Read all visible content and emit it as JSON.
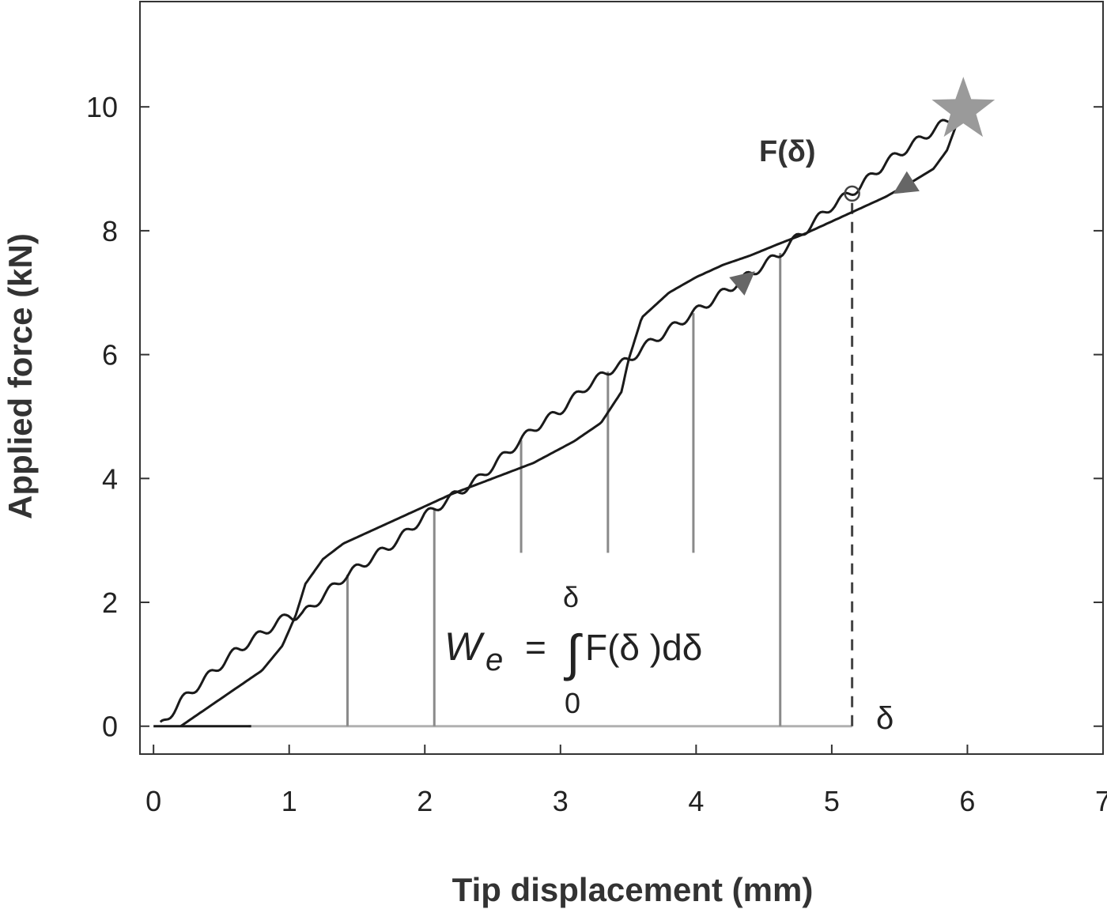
{
  "chart_data": {
    "type": "line",
    "title": "",
    "xlabel": "Tip displacement (mm)",
    "ylabel": "Applied force (kN)",
    "xlim": [
      -0.1,
      7
    ],
    "ylim": [
      -0.45,
      11.7
    ],
    "xticks": [
      0,
      1,
      2,
      3,
      4,
      5,
      6,
      7
    ],
    "xtick_labels": [
      "0",
      "1",
      "2",
      "3",
      "4",
      "5",
      "6",
      "7"
    ],
    "yticks": [
      0,
      2,
      4,
      6,
      8,
      10
    ],
    "ytick_labels": [
      "0",
      "2",
      "4",
      "6",
      "8",
      "10"
    ],
    "grid": false,
    "colors": {
      "curve": "#1a1a1a",
      "area_lines": "#8a8a8a",
      "baseline": "#b0b0b0",
      "arrow": "#666666",
      "star": "#9a9a9a"
    },
    "series": [
      {
        "style": "smooth-wavy",
        "x": [
          0.05,
          0.2,
          0.4,
          0.6,
          0.8,
          1.0,
          1.05,
          1.1,
          1.2,
          1.4,
          1.6,
          1.8,
          2.0,
          2.2,
          2.4,
          2.6,
          2.8,
          3.0,
          3.2,
          3.4,
          3.5,
          3.6,
          3.8,
          4.0,
          4.2,
          4.4,
          4.6,
          4.8,
          5.0,
          5.2,
          5.4,
          5.6,
          5.8,
          5.95
        ],
        "y": [
          0.0,
          0.4,
          0.8,
          1.2,
          1.5,
          1.8,
          1.78,
          1.8,
          2.0,
          2.4,
          2.7,
          3.0,
          3.4,
          3.7,
          4.0,
          4.4,
          4.8,
          5.1,
          5.5,
          5.8,
          5.9,
          6.1,
          6.4,
          6.7,
          7.0,
          7.3,
          7.6,
          8.0,
          8.4,
          8.7,
          9.1,
          9.4,
          9.7,
          9.9
        ]
      },
      {
        "style": "s-shaped",
        "x": [
          0.2,
          0.4,
          0.6,
          0.8,
          0.95,
          1.05,
          1.12,
          1.25,
          1.4,
          1.6,
          1.8,
          2.0,
          2.2,
          2.5,
          2.8,
          3.1,
          3.3,
          3.45,
          3.5,
          3.6,
          3.8,
          4.0,
          4.2,
          4.4,
          4.6,
          4.8,
          5.0,
          5.2,
          5.4,
          5.6,
          5.75,
          5.85,
          5.95
        ],
        "y": [
          0.0,
          0.3,
          0.6,
          0.9,
          1.3,
          1.8,
          2.3,
          2.7,
          2.95,
          3.15,
          3.35,
          3.55,
          3.75,
          4.0,
          4.25,
          4.6,
          4.9,
          5.4,
          5.9,
          6.6,
          7.0,
          7.25,
          7.45,
          7.6,
          7.78,
          7.95,
          8.15,
          8.35,
          8.55,
          8.8,
          9.0,
          9.3,
          9.9
        ]
      }
    ],
    "area_lines_x": [
      1.43,
      2.07,
      2.71,
      3.35,
      3.98,
      4.62
    ],
    "area_lines_bottom": [
      0,
      0,
      2.8,
      2.8,
      2.8,
      0
    ],
    "dashed_line_x": 5.15,
    "circle_marker": {
      "x": 5.15,
      "y": 8.6
    },
    "star_marker": {
      "x": 5.97,
      "y": 9.95
    },
    "arrows": [
      {
        "x": 4.3,
        "y": 7.1,
        "direction": "up-right"
      },
      {
        "x": 5.6,
        "y": 8.8,
        "direction": "down-left"
      }
    ],
    "annotations": {
      "curve_label": "F(δ)",
      "formula_lhs": "W",
      "formula_sub": "e",
      "formula_eq": "=",
      "formula_integral": "∫",
      "formula_body": "F(δ )dδ",
      "formula_upper": "δ",
      "formula_lower": "0",
      "delta_label": "δ"
    }
  }
}
